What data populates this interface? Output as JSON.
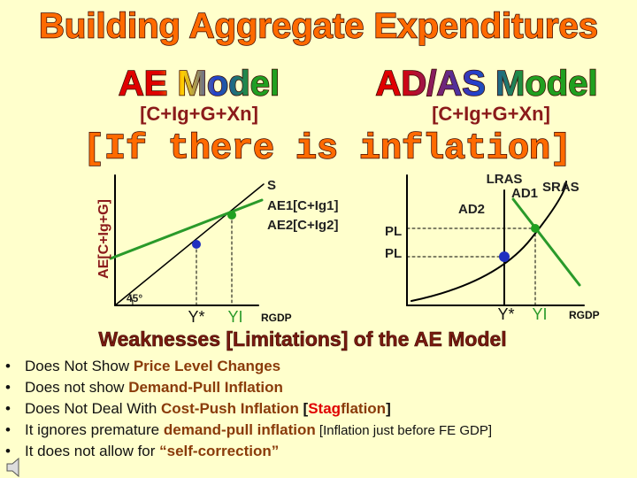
{
  "header": {
    "title": "Building Aggregate Expenditures",
    "left_heading": "AE Model",
    "left_formula": "[C+Ig+G+Xn]",
    "right_heading": "AD/AS Model",
    "right_formula": "[C+Ig+G+Xn]",
    "subtitle": "[If there is inflation]"
  },
  "ae_graph": {
    "y_axis_label": "AE[C+Ig+G]",
    "line_s": "S",
    "line_ae1": "AE1[C+Ig1]",
    "line_ae2": "AE2[C+Ig2]",
    "angle": "45°",
    "y_star": "Y*",
    "y_i": "YI",
    "x_axis_label": "RGDP"
  },
  "adas_graph": {
    "lras": "LRAS",
    "ad1": "AD1",
    "sras": "SRAS",
    "ad2": "AD2",
    "pl_upper": "PL",
    "pl_lower": "PL",
    "y_star": "Y*",
    "y_i": "YI",
    "x_axis_label": "RGDP"
  },
  "weaknesses": {
    "heading": "Weaknesses [Limitations] of the AE Model",
    "bullets": [
      [
        "Does Not Show ",
        "Price Level Changes"
      ],
      [
        "Does not show ",
        "Demand-Pull Inflation"
      ],
      [
        "Does Not Deal With ",
        "Cost-Push Inflation",
        " [",
        "Stag",
        "flation",
        "]"
      ],
      [
        "It ignores premature ",
        "demand-pull inflation",
        " [Inflation just before FE GDP]"
      ],
      [
        "It does not allow for ",
        "“self-correction”"
      ]
    ]
  }
}
